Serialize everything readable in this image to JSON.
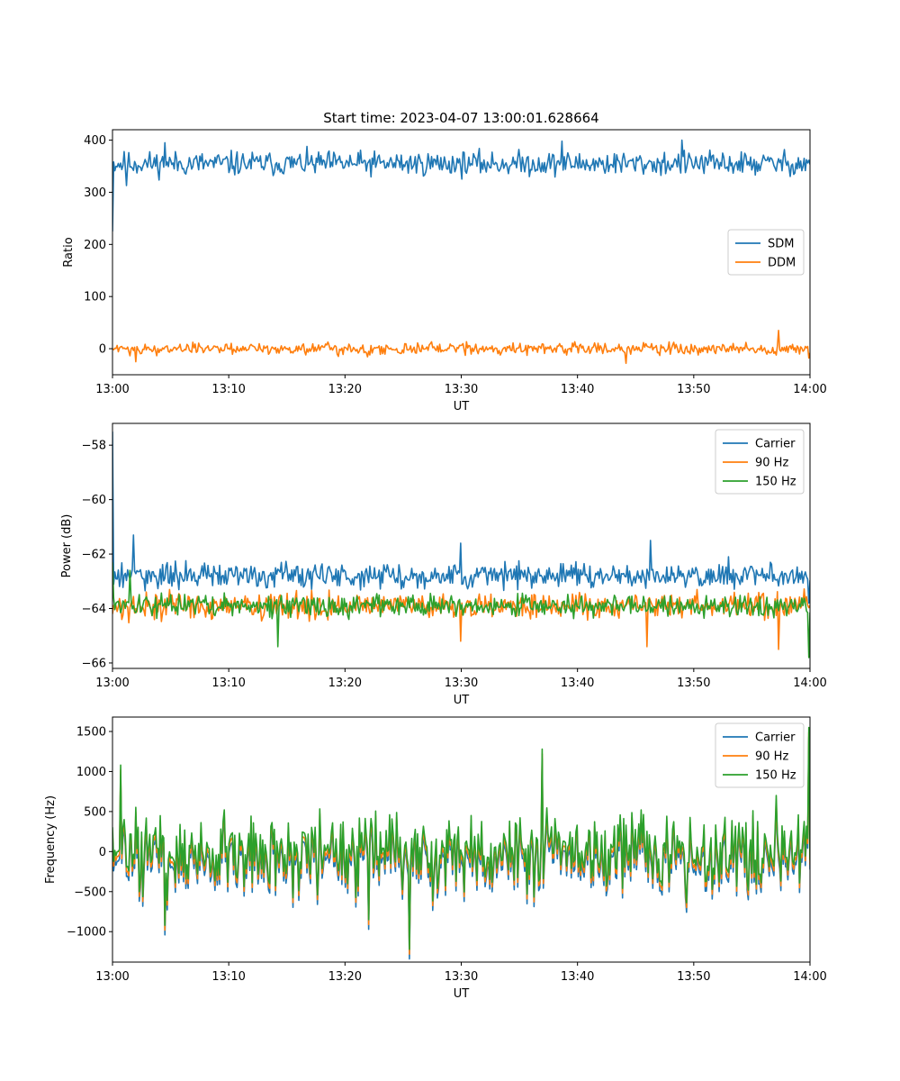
{
  "figure": {
    "title": "Start time: 2023-04-07 13:00:01.628664"
  },
  "colors": {
    "blue": "#1f77b4",
    "orange": "#ff7f0e",
    "green": "#2ca02c"
  },
  "chart_data": [
    {
      "type": "line",
      "title": "Start time: 2023-04-07 13:00:01.628664",
      "xlabel": "UT",
      "ylabel": "Ratio",
      "xlim": [
        "13:00",
        "14:00"
      ],
      "ylim": [
        -50,
        420
      ],
      "xticks": [
        "13:00",
        "13:10",
        "13:20",
        "13:30",
        "13:40",
        "13:50",
        "14:00"
      ],
      "yticks": [
        0,
        100,
        200,
        300,
        400
      ],
      "legend": "center-right",
      "series": [
        {
          "name": "SDM",
          "color": "#1f77b4",
          "start": 225,
          "mean": 355,
          "amplitude": 20,
          "spikes": [
            [
              4.5,
              395
            ],
            [
              38.7,
              398
            ],
            [
              49.0,
              400
            ],
            [
              1.2,
              313
            ]
          ]
        },
        {
          "name": "DDM",
          "color": "#ff7f0e",
          "start": 0,
          "mean": 0,
          "amplitude": 10,
          "spikes": [
            [
              57.3,
              35
            ],
            [
              44.2,
              -28
            ],
            [
              2.0,
              -25
            ],
            [
              59.9,
              -18
            ]
          ]
        }
      ]
    },
    {
      "type": "line",
      "xlabel": "UT",
      "ylabel": "Power (dB)",
      "xlim": [
        "13:00",
        "14:00"
      ],
      "ylim": [
        -66.2,
        -57.2
      ],
      "xticks": [
        "13:00",
        "13:10",
        "13:20",
        "13:30",
        "13:40",
        "13:50",
        "14:00"
      ],
      "yticks": [
        -66,
        -64,
        -62,
        -60,
        -58
      ],
      "legend": "top-right",
      "series": [
        {
          "name": "Carrier",
          "color": "#1f77b4",
          "start": -57.5,
          "mean": -62.8,
          "amplitude": 0.4,
          "spikes": [
            [
              1.8,
              -61.3
            ],
            [
              29.9,
              -61.6
            ],
            [
              46.3,
              -61.5
            ],
            [
              53.0,
              -62.1
            ],
            [
              59.9,
              -63.8
            ]
          ]
        },
        {
          "name": "90 Hz",
          "color": "#ff7f0e",
          "start": -64.2,
          "mean": -63.9,
          "amplitude": 0.4,
          "spikes": [
            [
              46.0,
              -65.4
            ],
            [
              57.3,
              -65.5
            ],
            [
              29.9,
              -65.2
            ]
          ]
        },
        {
          "name": "150 Hz",
          "color": "#2ca02c",
          "start": -62.3,
          "mean": -63.9,
          "amplitude": 0.35,
          "spikes": [
            [
              14.2,
              -65.4
            ],
            [
              59.9,
              -65.8
            ],
            [
              1.5,
              -62.6
            ]
          ]
        }
      ]
    },
    {
      "type": "line",
      "xlabel": "UT",
      "ylabel": "Frequency (Hz)",
      "xlim": [
        "13:00",
        "14:00"
      ],
      "ylim": [
        -1380,
        1680
      ],
      "xticks": [
        "13:00",
        "13:10",
        "13:20",
        "13:30",
        "13:40",
        "13:50",
        "14:00"
      ],
      "yticks": [
        -1000,
        -500,
        0,
        500,
        1000,
        1500
      ],
      "legend": "top-right",
      "series": [
        {
          "name": "Carrier",
          "color": "#1f77b4",
          "offset": -120
        },
        {
          "name": "90 Hz",
          "color": "#ff7f0e",
          "offset": -60
        },
        {
          "name": "150 Hz",
          "color": "#2ca02c",
          "offset": 0,
          "mean": 0,
          "amplitude": 420,
          "spikes": [
            [
              25.5,
              -1220
            ],
            [
              37.0,
              1280
            ],
            [
              59.9,
              1550
            ],
            [
              0.7,
              1080
            ],
            [
              4.5,
              -920
            ],
            [
              22.0,
              -850
            ]
          ]
        }
      ]
    }
  ]
}
